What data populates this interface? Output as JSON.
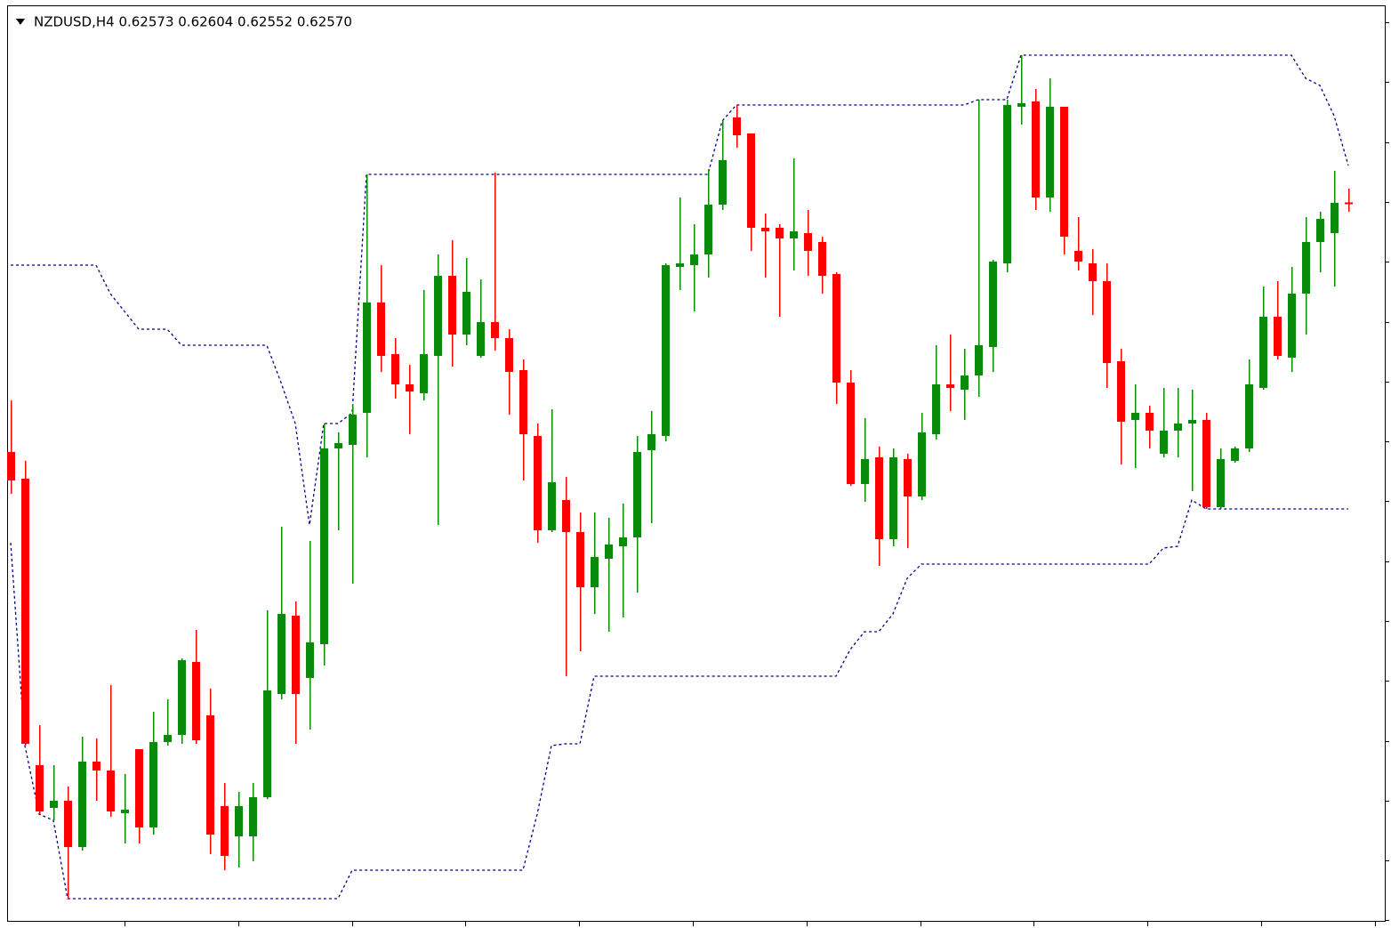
{
  "chart_data": {
    "type": "candlestick",
    "title": "NZDUSD,H4  0.62573 0.62604 0.62552 0.62570",
    "ylim": [
      0.60958,
      0.63028
    ],
    "up_color": "#0a8a0a",
    "down_color": "#ff0000",
    "open": [
      0.62012,
      0.61952,
      0.61308,
      0.61212,
      0.61228,
      0.61124,
      0.61316,
      0.61296,
      0.612,
      0.61344,
      0.61168,
      0.6136,
      0.61376,
      0.6154,
      0.6142,
      0.61216,
      0.61148,
      0.61148,
      0.61236,
      0.61468,
      0.61644,
      0.61504,
      0.6158,
      0.6202,
      0.62028,
      0.621,
      0.62348,
      0.62232,
      0.62164,
      0.62144,
      0.62228,
      0.62408,
      0.62276,
      0.62228,
      0.62304,
      0.62268,
      0.62196,
      0.62048,
      0.61836,
      0.61904,
      0.61832,
      0.61708,
      0.61772,
      0.618,
      0.6182,
      0.62016,
      0.62048,
      0.62428,
      0.62432,
      0.62456,
      0.62568,
      0.62764,
      0.62728,
      0.62516,
      0.62516,
      0.62492,
      0.62504,
      0.62484,
      0.62412,
      0.62168,
      0.6194,
      0.62,
      0.61816,
      0.61996,
      0.61912,
      0.62052,
      0.62164,
      0.62152,
      0.62184,
      0.62248,
      0.62436,
      0.62788,
      0.628,
      0.62584,
      0.62788,
      0.62464,
      0.62436,
      0.62396,
      0.62216,
      0.62084,
      0.621,
      0.62008,
      0.6206,
      0.62076,
      0.62084,
      0.61888,
      0.61992,
      0.6202,
      0.62156,
      0.62316,
      0.62224,
      0.62368,
      0.62484,
      0.62504,
      0.62573
    ],
    "high": [
      0.62128,
      0.61992,
      0.61398,
      0.61308,
      0.6126,
      0.61372,
      0.61368,
      0.61488,
      0.61288,
      0.61344,
      0.61428,
      0.61456,
      0.61548,
      0.61612,
      0.6148,
      0.61268,
      0.61248,
      0.61268,
      0.61656,
      0.61844,
      0.61676,
      0.61812,
      0.62076,
      0.62056,
      0.6212,
      0.62636,
      0.62432,
      0.62268,
      0.62208,
      0.62376,
      0.62456,
      0.62488,
      0.62448,
      0.624,
      0.6264,
      0.62288,
      0.6222,
      0.62076,
      0.62108,
      0.61956,
      0.61876,
      0.61876,
      0.61864,
      0.61896,
      0.62048,
      0.62104,
      0.62436,
      0.62584,
      0.62524,
      0.62648,
      0.62756,
      0.62792,
      0.62728,
      0.62548,
      0.62524,
      0.62672,
      0.62556,
      0.62496,
      0.62416,
      0.62196,
      0.62088,
      0.62024,
      0.6202,
      0.62008,
      0.621,
      0.62252,
      0.62276,
      0.62244,
      0.62804,
      0.62444,
      0.62804,
      0.62904,
      0.62828,
      0.62852,
      0.62788,
      0.6254,
      0.62468,
      0.62436,
      0.62244,
      0.62164,
      0.62116,
      0.62156,
      0.62156,
      0.62152,
      0.621,
      0.6202,
      0.62024,
      0.6222,
      0.62384,
      0.62396,
      0.62428,
      0.6254,
      0.62552,
      0.62644,
      0.62604
    ],
    "low": [
      0.61918,
      0.61352,
      0.61198,
      0.61184,
      0.61008,
      0.61116,
      0.61228,
      0.61192,
      0.61132,
      0.61132,
      0.61152,
      0.61352,
      0.61356,
      0.61356,
      0.61108,
      0.61072,
      0.61078,
      0.61092,
      0.61232,
      0.61456,
      0.61356,
      0.61388,
      0.61532,
      0.61836,
      0.61716,
      0.62,
      0.62192,
      0.62132,
      0.62052,
      0.62128,
      0.61848,
      0.62204,
      0.62252,
      0.62224,
      0.6224,
      0.62096,
      0.61948,
      0.61808,
      0.61832,
      0.61508,
      0.61564,
      0.61648,
      0.61608,
      0.6164,
      0.61696,
      0.61852,
      0.62036,
      0.62376,
      0.62328,
      0.62404,
      0.62556,
      0.62696,
      0.62464,
      0.62404,
      0.62316,
      0.6242,
      0.62408,
      0.62368,
      0.6212,
      0.61936,
      0.619,
      0.61756,
      0.618,
      0.61796,
      0.61904,
      0.6204,
      0.62104,
      0.62084,
      0.62136,
      0.62192,
      0.62416,
      0.62748,
      0.62556,
      0.62552,
      0.62456,
      0.6242,
      0.6232,
      0.62156,
      0.61984,
      0.61976,
      0.6202,
      0.62,
      0.62,
      0.61924,
      0.61884,
      0.61884,
      0.61988,
      0.62012,
      0.62152,
      0.6222,
      0.62192,
      0.62276,
      0.62416,
      0.62384,
      0.62552
    ],
    "close": [
      0.61948,
      0.61356,
      0.61204,
      0.61228,
      0.61124,
      0.61316,
      0.61296,
      0.61204,
      0.61208,
      0.61168,
      0.6136,
      0.61376,
      0.61544,
      0.61364,
      0.61152,
      0.61104,
      0.61216,
      0.61236,
      0.61476,
      0.61648,
      0.61468,
      0.61584,
      0.6202,
      0.62032,
      0.62096,
      0.62348,
      0.62228,
      0.62164,
      0.62148,
      0.62232,
      0.62408,
      0.62276,
      0.62372,
      0.62304,
      0.62268,
      0.62192,
      0.62052,
      0.61836,
      0.61944,
      0.61832,
      0.61708,
      0.61776,
      0.61804,
      0.6182,
      0.62012,
      0.62052,
      0.62432,
      0.62436,
      0.62456,
      0.62568,
      0.62668,
      0.62724,
      0.62516,
      0.62508,
      0.62492,
      0.62508,
      0.62464,
      0.62408,
      0.62168,
      0.6194,
      0.61996,
      0.61816,
      0.62,
      0.61912,
      0.62056,
      0.62164,
      0.62156,
      0.62184,
      0.62252,
      0.6244,
      0.62792,
      0.62796,
      0.62584,
      0.62788,
      0.62496,
      0.6244,
      0.62396,
      0.62212,
      0.6208,
      0.621,
      0.6206,
      0.6206,
      0.62076,
      0.62084,
      0.61888,
      0.61996,
      0.6202,
      0.62164,
      0.62316,
      0.62228,
      0.62368,
      0.62484,
      0.62536,
      0.62572,
      0.6257
    ],
    "series": [
      {
        "color": "#00008b",
        "values": [
          0.62432,
          0.62432,
          0.62432,
          0.62432,
          0.62432,
          0.62432,
          0.62432,
          0.62368,
          0.62328,
          0.62288,
          0.62288,
          0.62288,
          0.62252,
          0.62252,
          0.62252,
          0.62252,
          0.62252,
          0.62252,
          0.62252,
          0.62168,
          0.62076,
          0.61848,
          0.62076,
          0.62076,
          0.621,
          0.62636,
          0.62636,
          0.62636,
          0.62636,
          0.62636,
          0.62636,
          0.62636,
          0.62636,
          0.62636,
          0.62636,
          0.62636,
          0.62636,
          0.62636,
          0.62636,
          0.62636,
          0.62636,
          0.62636,
          0.62636,
          0.62636,
          0.62636,
          0.62636,
          0.62636,
          0.62636,
          0.62636,
          0.62636,
          0.62756,
          0.62792,
          0.62792,
          0.62792,
          0.62792,
          0.62792,
          0.62792,
          0.62792,
          0.62792,
          0.62792,
          0.62792,
          0.62792,
          0.62792,
          0.62792,
          0.62792,
          0.62792,
          0.62792,
          0.62792,
          0.62804,
          0.62804,
          0.62804,
          0.62904,
          0.62904,
          0.62904,
          0.62904,
          0.62904,
          0.62904,
          0.62904,
          0.62904,
          0.62904,
          0.62904,
          0.62904,
          0.62904,
          0.62904,
          0.62904,
          0.62904,
          0.62904,
          0.62904,
          0.62904,
          0.62904,
          0.62904,
          0.62852,
          0.62836,
          0.62768,
          0.62656
        ]
      },
      {
        "color": "#00008b",
        "values": [
          0.61808,
          0.61352,
          0.61198,
          0.61184,
          0.61008,
          0.61008,
          0.61008,
          0.61008,
          0.61008,
          0.61008,
          0.61008,
          0.61008,
          0.61008,
          0.61008,
          0.61008,
          0.61008,
          0.61008,
          0.61008,
          0.61008,
          0.61008,
          0.61008,
          0.61008,
          0.61008,
          0.61008,
          0.61072,
          0.61072,
          0.61072,
          0.61072,
          0.61072,
          0.61072,
          0.61072,
          0.61072,
          0.61072,
          0.61072,
          0.61072,
          0.61072,
          0.61072,
          0.61198,
          0.61352,
          0.61356,
          0.61356,
          0.61508,
          0.61508,
          0.61508,
          0.61508,
          0.61508,
          0.61508,
          0.61508,
          0.61508,
          0.61508,
          0.61508,
          0.61508,
          0.61508,
          0.61508,
          0.61508,
          0.61508,
          0.61508,
          0.61508,
          0.61508,
          0.61568,
          0.61608,
          0.61608,
          0.61648,
          0.61728,
          0.6176,
          0.6176,
          0.6176,
          0.6176,
          0.6176,
          0.6176,
          0.6176,
          0.6176,
          0.6176,
          0.6176,
          0.6176,
          0.6176,
          0.6176,
          0.6176,
          0.6176,
          0.6176,
          0.6176,
          0.61796,
          0.618,
          0.61904,
          0.61884,
          0.61884,
          0.61884,
          0.61884,
          0.61884,
          0.61884,
          0.61884,
          0.61884,
          0.61884,
          0.61884,
          0.61884
        ]
      }
    ]
  }
}
